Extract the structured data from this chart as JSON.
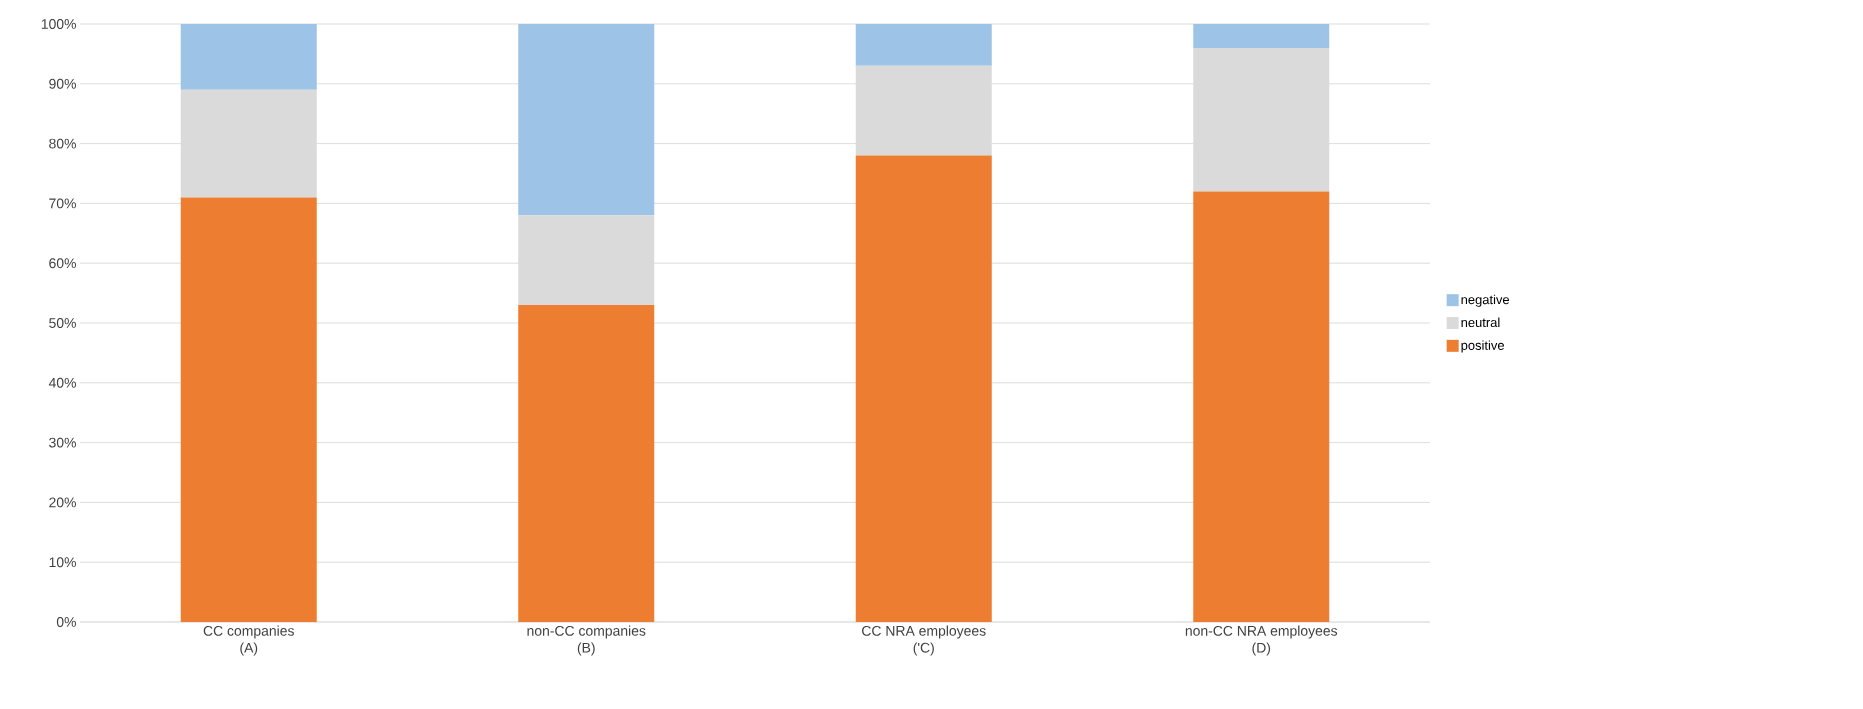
{
  "chart_data": {
    "type": "bar",
    "stacked": true,
    "categories": [
      "CC companies\n(A)",
      "non-CC companies\n(B)",
      "CC NRA employees\n('C)",
      "non-CC NRA employees\n(D)"
    ],
    "series": [
      {
        "name": "positive",
        "color": "#ed7d31",
        "values": [
          71,
          53,
          78,
          72
        ]
      },
      {
        "name": "neutral",
        "color": "#dadada",
        "values": [
          18,
          15,
          15,
          24
        ]
      },
      {
        "name": "negative",
        "color": "#9dc3e6",
        "values": [
          11,
          32,
          7,
          4
        ]
      }
    ],
    "ylim": [
      0,
      100
    ],
    "yticks": [
      {
        "value": 0,
        "label": "0%"
      },
      {
        "value": 10,
        "label": "10%"
      },
      {
        "value": 20,
        "label": "20%"
      },
      {
        "value": 30,
        "label": "30%"
      },
      {
        "value": 40,
        "label": "40%"
      },
      {
        "value": 50,
        "label": "50%"
      },
      {
        "value": 60,
        "label": "60%"
      },
      {
        "value": 70,
        "label": "70%"
      },
      {
        "value": 80,
        "label": "80%"
      },
      {
        "value": 90,
        "label": "90%"
      },
      {
        "value": 100,
        "label": "100%"
      }
    ],
    "grid": "y",
    "legend": "right"
  }
}
